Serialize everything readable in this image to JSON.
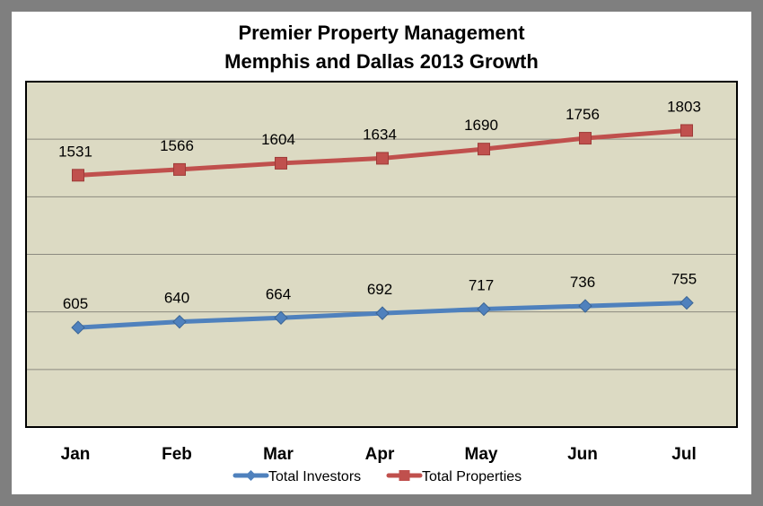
{
  "colors": {
    "frame": "#7f7f7f",
    "plot_background": "#dcdac3",
    "gridline": "#8c8a80",
    "plot_border": "#000000",
    "series_investors": "#4f81bd",
    "series_properties": "#c0504d"
  },
  "chart_data": {
    "type": "line",
    "title": "Premier Property Management",
    "subtitle": "Memphis and Dallas 2013 Growth",
    "xlabel": "",
    "ylabel": "",
    "categories": [
      "Jan",
      "Feb",
      "Mar",
      "Apr",
      "May",
      "Jun",
      "Jul"
    ],
    "ylim": [
      0,
      2100
    ],
    "y_gridlines": [
      350,
      700,
      1050,
      1400,
      1750
    ],
    "y_tick_labels_visible": false,
    "grid": true,
    "legend_position": "bottom",
    "data_labels": true,
    "series": [
      {
        "name": "Total Investors",
        "marker": "diamond",
        "color": "#4f81bd",
        "values": [
          605,
          640,
          664,
          692,
          717,
          736,
          755
        ]
      },
      {
        "name": "Total Properties",
        "marker": "square",
        "color": "#c0504d",
        "values": [
          1531,
          1566,
          1604,
          1634,
          1690,
          1756,
          1803
        ]
      }
    ]
  }
}
